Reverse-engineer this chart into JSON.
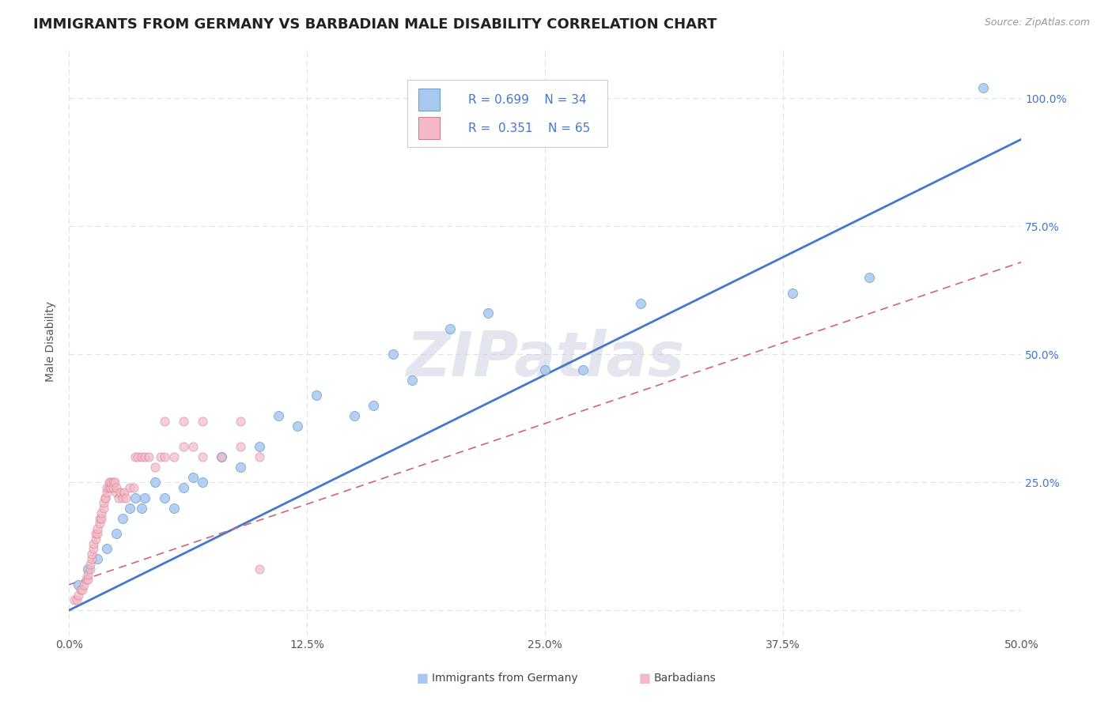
{
  "title": "IMMIGRANTS FROM GERMANY VS BARBADIAN MALE DISABILITY CORRELATION CHART",
  "source_text": "Source: ZipAtlas.com",
  "ylabel": "Male Disability",
  "xlim": [
    0.0,
    0.5
  ],
  "ylim": [
    -0.05,
    1.1
  ],
  "xtick_labels": [
    "0.0%",
    "12.5%",
    "25.0%",
    "37.5%",
    "50.0%"
  ],
  "xtick_vals": [
    0.0,
    0.125,
    0.25,
    0.375,
    0.5
  ],
  "ytick_labels": [
    "",
    "25.0%",
    "50.0%",
    "75.0%",
    "100.0%"
  ],
  "ytick_vals": [
    0.0,
    0.25,
    0.5,
    0.75,
    1.0
  ],
  "blue_scatter_color": "#A8C8F0",
  "blue_edge_color": "#6699CC",
  "pink_scatter_color": "#F5B8C8",
  "pink_edge_color": "#CC7788",
  "line_blue_color": "#4477CC",
  "line_pink_color": "#CC6677",
  "R_blue": 0.699,
  "N_blue": 34,
  "R_pink": 0.351,
  "N_pink": 65,
  "watermark": "ZIPatlas",
  "watermark_color": "#C8CCE0",
  "blue_line_x0": 0.0,
  "blue_line_y0": 0.0,
  "blue_line_x1": 0.5,
  "blue_line_y1": 0.92,
  "pink_line_x0": 0.0,
  "pink_line_y0": 0.05,
  "pink_line_x1": 0.5,
  "pink_line_y1": 0.68,
  "blue_scatter_x": [
    0.005,
    0.01,
    0.015,
    0.02,
    0.025,
    0.028,
    0.032,
    0.035,
    0.038,
    0.04,
    0.045,
    0.05,
    0.055,
    0.06,
    0.065,
    0.07,
    0.08,
    0.09,
    0.1,
    0.11,
    0.12,
    0.13,
    0.15,
    0.16,
    0.17,
    0.18,
    0.2,
    0.22,
    0.25,
    0.27,
    0.3,
    0.38,
    0.42,
    0.48
  ],
  "blue_scatter_y": [
    0.05,
    0.08,
    0.1,
    0.12,
    0.15,
    0.18,
    0.2,
    0.22,
    0.2,
    0.22,
    0.25,
    0.22,
    0.2,
    0.24,
    0.26,
    0.25,
    0.3,
    0.28,
    0.32,
    0.38,
    0.36,
    0.42,
    0.38,
    0.4,
    0.5,
    0.45,
    0.55,
    0.58,
    0.47,
    0.47,
    0.6,
    0.62,
    0.65,
    1.02
  ],
  "pink_scatter_x": [
    0.003,
    0.004,
    0.005,
    0.006,
    0.007,
    0.008,
    0.009,
    0.01,
    0.01,
    0.011,
    0.011,
    0.012,
    0.012,
    0.013,
    0.013,
    0.014,
    0.014,
    0.015,
    0.015,
    0.016,
    0.016,
    0.017,
    0.017,
    0.018,
    0.018,
    0.019,
    0.019,
    0.02,
    0.02,
    0.021,
    0.021,
    0.022,
    0.022,
    0.023,
    0.023,
    0.024,
    0.025,
    0.025,
    0.026,
    0.027,
    0.028,
    0.029,
    0.03,
    0.032,
    0.034,
    0.035,
    0.036,
    0.038,
    0.04,
    0.042,
    0.045,
    0.048,
    0.05,
    0.055,
    0.06,
    0.065,
    0.07,
    0.08,
    0.09,
    0.1,
    0.05,
    0.06,
    0.07,
    0.09,
    0.1
  ],
  "pink_scatter_y": [
    0.02,
    0.02,
    0.03,
    0.04,
    0.04,
    0.05,
    0.06,
    0.06,
    0.07,
    0.08,
    0.09,
    0.1,
    0.11,
    0.12,
    0.13,
    0.14,
    0.15,
    0.15,
    0.16,
    0.17,
    0.18,
    0.18,
    0.19,
    0.2,
    0.21,
    0.22,
    0.22,
    0.23,
    0.24,
    0.24,
    0.25,
    0.24,
    0.25,
    0.25,
    0.24,
    0.25,
    0.23,
    0.24,
    0.22,
    0.23,
    0.22,
    0.23,
    0.22,
    0.24,
    0.24,
    0.3,
    0.3,
    0.3,
    0.3,
    0.3,
    0.28,
    0.3,
    0.3,
    0.3,
    0.32,
    0.32,
    0.3,
    0.3,
    0.32,
    0.3,
    0.37,
    0.37,
    0.37,
    0.37,
    0.08
  ],
  "bg_color": "#FFFFFF",
  "grid_color": "#E0E0E8",
  "title_fontsize": 13,
  "axis_label_fontsize": 10,
  "tick_fontsize": 10,
  "legend_fontsize": 11,
  "source_fontsize": 9
}
